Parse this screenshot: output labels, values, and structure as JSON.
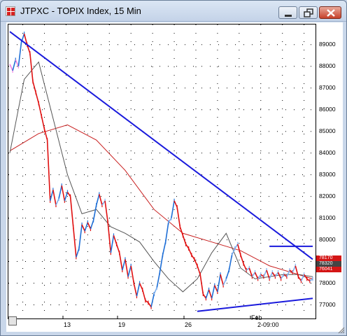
{
  "window": {
    "title": "JTPXC - TOPIX Index, 15 Min"
  },
  "controls": {
    "minimize": "minimize",
    "maximize": "maximize",
    "close": "close"
  },
  "colors": {
    "accent_trendline": "#1a1adc",
    "ma_slow": "#c81e1e",
    "ma_fast": "#555555",
    "bars_up": "#1f6fd6",
    "bars_down": "#e01010",
    "bars_neutral": "#000000",
    "bars_light_up": "#7fb0ee",
    "bars_light_down": "#ee80e0"
  },
  "chart_data": {
    "type": "line",
    "title": "JTPXC - TOPIX Index, 15 Min",
    "xlabel": "",
    "ylabel": "",
    "y_ticks": [
      "89000",
      "88000",
      "87000",
      "86000",
      "85000",
      "84000",
      "83000",
      "82000",
      "81000",
      "80000",
      "79000",
      "78000",
      "77000"
    ],
    "x_ticks": [
      "13",
      "19",
      "26",
      "Feb",
      "2-09:00"
    ],
    "ylim": [
      76500,
      89800
    ],
    "price_markers": [
      {
        "label": "78170",
        "color": "#d41515"
      },
      {
        "label": "78320",
        "color": "#444444"
      },
      {
        "label": "76041",
        "color": "#d41515"
      }
    ],
    "series": [
      {
        "name": "",
        "role": "price",
        "x": [
          0,
          4,
          8,
          12,
          16,
          20,
          24,
          28,
          32,
          36,
          40,
          44,
          48,
          52,
          56,
          60,
          64,
          68,
          72,
          76,
          80,
          84,
          88,
          92,
          96,
          100,
          104,
          108,
          112,
          116,
          120,
          124,
          128,
          132,
          136,
          140,
          144,
          148,
          152,
          156,
          160,
          164,
          168,
          172,
          176,
          180,
          184,
          188,
          192,
          196,
          200,
          204,
          208,
          212,
          216,
          220,
          224,
          228,
          232,
          236,
          240,
          244,
          248,
          252,
          256,
          260,
          264,
          268,
          272,
          276,
          280,
          284,
          288,
          292,
          296,
          300,
          304,
          308,
          312,
          316,
          320,
          324,
          328,
          332,
          336,
          340,
          344,
          348,
          352,
          356,
          360,
          364,
          368,
          372,
          376,
          380,
          384,
          388,
          392,
          396,
          400,
          404,
          408,
          412,
          416,
          420
        ],
        "values": [
          88100,
          87800,
          88300,
          88000,
          89100,
          89500,
          89000,
          88600,
          87300,
          86800,
          86300,
          85700,
          85100,
          84600,
          81800,
          82300,
          81600,
          81900,
          82500,
          81800,
          82200,
          82000,
          80600,
          79200,
          79600,
          80700,
          80400,
          80800,
          80500,
          80900,
          81600,
          82100,
          81600,
          81800,
          80800,
          79400,
          80200,
          79800,
          79400,
          78600,
          79100,
          78300,
          78800,
          78000,
          77400,
          78000,
          77700,
          77200,
          77100,
          76900,
          77500,
          77800,
          78500,
          79300,
          79900,
          80800,
          81000,
          81800,
          81500,
          80600,
          80200,
          79800,
          79600,
          79300,
          79100,
          78800,
          78400,
          77500,
          77300,
          77700,
          77300,
          77900,
          77600,
          78400,
          77900,
          78200,
          78600,
          79300,
          79600,
          79800,
          79300,
          78900,
          78600,
          78700,
          78300,
          78500,
          78200,
          78400,
          78300,
          78600,
          78200,
          78500,
          78300,
          78500,
          78200,
          78400,
          78300,
          78600,
          78500,
          78800,
          78300,
          78100,
          78400,
          78200,
          78100,
          78200
        ]
      },
      {
        "name": "",
        "role": "moving_average_fast",
        "x": [
          0,
          20,
          40,
          60,
          80,
          100,
          120,
          140,
          160,
          180,
          200,
          220,
          240,
          260,
          280,
          300,
          320,
          340,
          360,
          380,
          400,
          420
        ],
        "values": [
          84000,
          87400,
          88200,
          85600,
          83000,
          81200,
          81400,
          80600,
          80300,
          79900,
          79000,
          78200,
          77600,
          78200,
          79400,
          80300,
          78700,
          78200,
          78300,
          78400,
          78400,
          78300
        ]
      },
      {
        "name": "",
        "role": "moving_average_slow",
        "x": [
          0,
          40,
          80,
          120,
          160,
          200,
          240,
          280,
          320,
          360,
          420
        ],
        "values": [
          84100,
          84900,
          85300,
          84600,
          83200,
          81400,
          80300,
          79900,
          79500,
          78800,
          78200
        ]
      },
      {
        "name": "",
        "role": "trendline_upper",
        "x": [
          0,
          420
        ],
        "values": [
          89600,
          79100
        ]
      },
      {
        "name": "",
        "role": "trendline_lower",
        "x": [
          260,
          420
        ],
        "values": [
          76700,
          77300
        ]
      },
      {
        "name": "",
        "role": "trendline_resistance",
        "x": [
          360,
          420
        ],
        "values": [
          79700,
          79700
        ]
      }
    ],
    "grid": true,
    "legend": "none"
  }
}
